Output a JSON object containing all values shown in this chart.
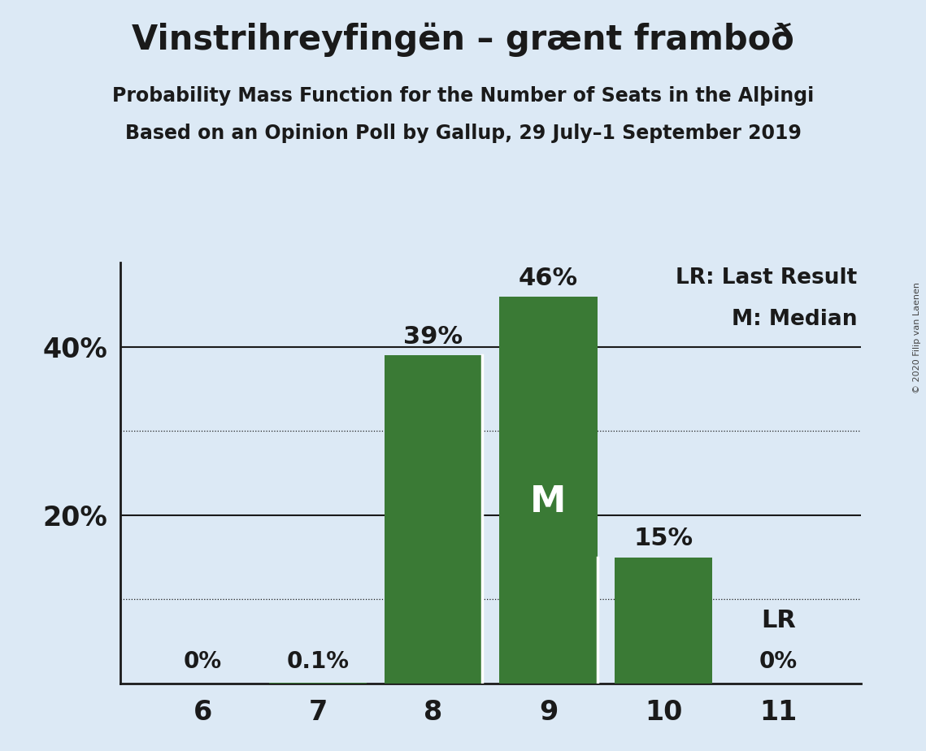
{
  "title": "Vinstrihreyfingën – grænt framboð",
  "subtitle1_text": "Probability Mass Function for the Number of Seats in the Alþingi",
  "subtitle2_text": "Based on an Opinion Poll by Gallup, 29 July–1 September 2019",
  "copyright": "© 2020 Filip van Laenen",
  "categories": [
    6,
    7,
    8,
    9,
    10,
    11
  ],
  "values": [
    0.0,
    0.1,
    39.0,
    46.0,
    15.0,
    0.0
  ],
  "bar_color": "#3a7a35",
  "background_color": "#dce9f5",
  "text_color": "#1a1a1a",
  "legend_lr": "LR: Last Result",
  "legend_m": "M: Median",
  "bar_labels": [
    "0%",
    "0.1%",
    "39%",
    "46%",
    "15%",
    "0%"
  ],
  "major_yticks": [
    20,
    40
  ],
  "minor_yticks": [
    10,
    30
  ],
  "ylim": [
    0,
    50
  ]
}
